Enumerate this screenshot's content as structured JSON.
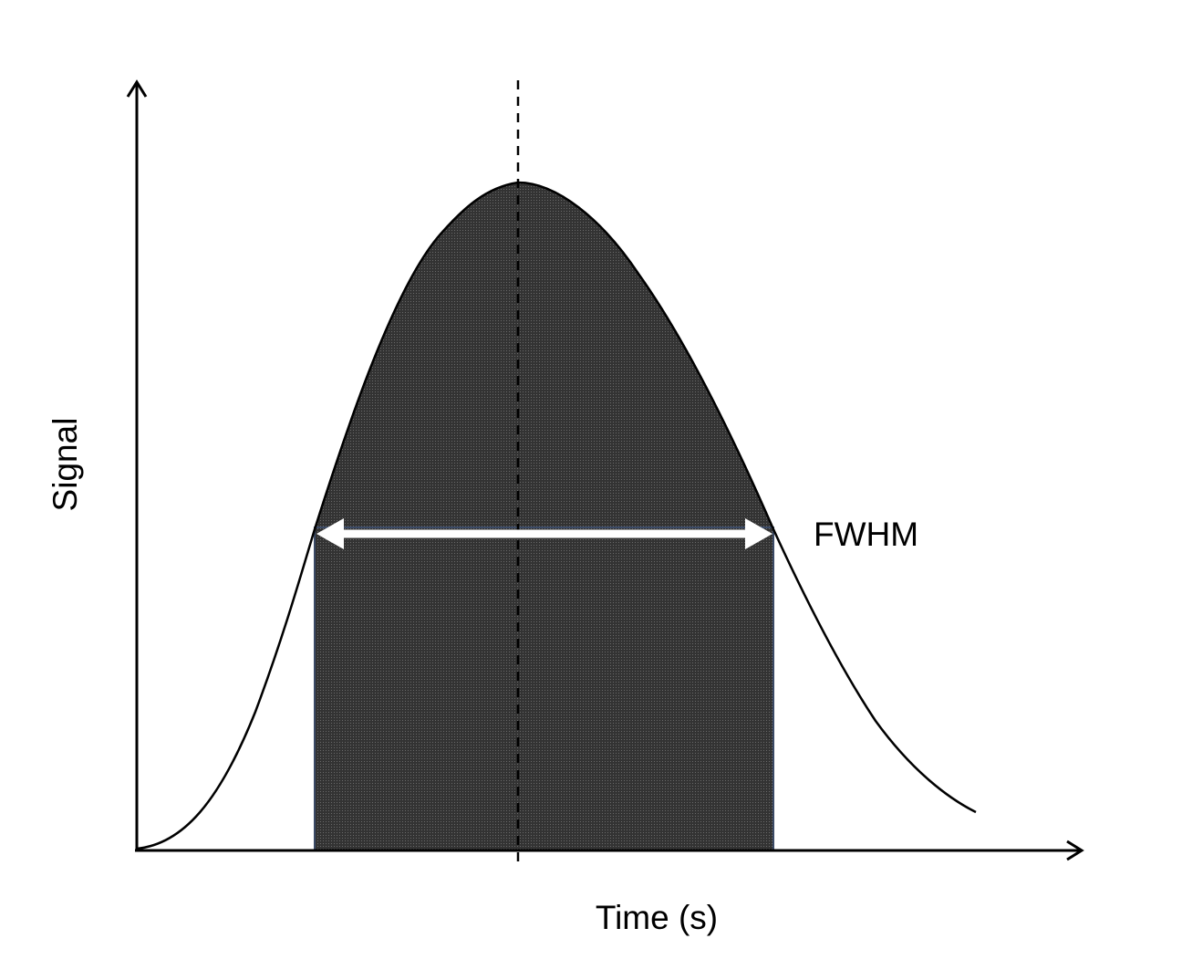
{
  "diagram": {
    "y_axis_label": "Signal",
    "x_axis_label": "Time (s)",
    "width_label": "FWHM"
  },
  "colors": {
    "fill": "#3a3a3a",
    "curve": "#000000",
    "axis": "#000000",
    "arrow": "#ffffff",
    "band_edge": "#3b4a66"
  }
}
